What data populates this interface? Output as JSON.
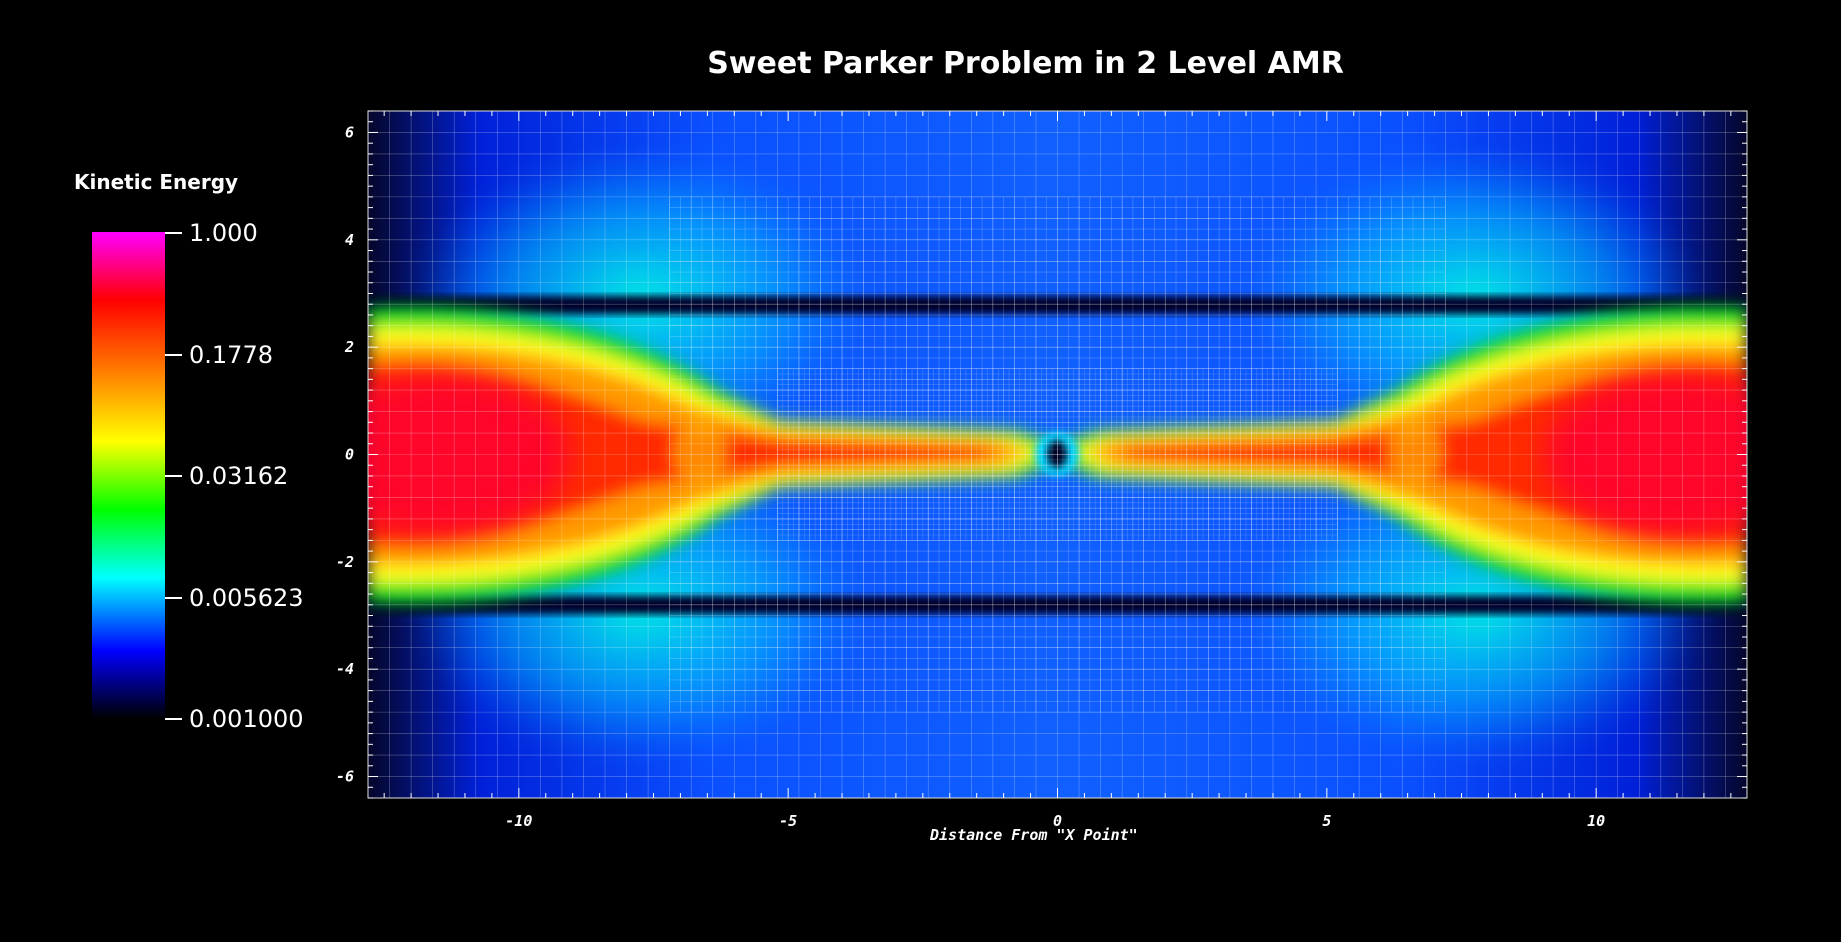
{
  "title": "Sweet Parker Problem in 2 Level AMR",
  "legend": {
    "title": "Kinetic Energy",
    "labels": [
      "1.000",
      "0.1778",
      "0.03162",
      "0.005623",
      "0.001000"
    ]
  },
  "chart_data": {
    "type": "heatmap",
    "title": "Sweet Parker Problem in 2 Level AMR",
    "xlabel": "Distance From \"X Point\"",
    "ylabel": "",
    "xlim": [
      -12.8,
      12.8
    ],
    "ylim": [
      -6.4,
      6.4
    ],
    "xticks": [
      -10,
      -5,
      0,
      5,
      10
    ],
    "xtick_labels": [
      "-10",
      "-5",
      "0",
      "5",
      "10"
    ],
    "yticks": [
      6,
      4,
      2,
      0,
      -2,
      -4,
      -6
    ],
    "ytick_labels": [
      "6",
      "4",
      "2",
      "0",
      "-2",
      "-4",
      "-6"
    ],
    "colorbar": {
      "label": "Kinetic Energy",
      "scale": "log",
      "range": [
        0.001,
        1.0
      ],
      "ticks": [
        1.0,
        0.1778,
        0.03162,
        0.005623,
        0.001
      ],
      "tick_labels": [
        "1.000",
        "0.1778",
        "0.03162",
        "0.005623",
        "0.001000"
      ]
    },
    "grid": true,
    "amr_levels": 2,
    "refined_regions": [
      {
        "x": [
          -7.2,
          7.2
        ],
        "y": [
          -4.8,
          4.8
        ]
      },
      {
        "x": [
          -5.2,
          5.2
        ],
        "y": [
          -1.6,
          1.6
        ]
      }
    ]
  },
  "colors": {
    "background": "#000000",
    "grid": "#ffffff",
    "colormap": [
      "#000000",
      "#0000ff",
      "#00ffff",
      "#00ff00",
      "#ffff00",
      "#ff8000",
      "#ff0000",
      "#ff00ff"
    ]
  }
}
